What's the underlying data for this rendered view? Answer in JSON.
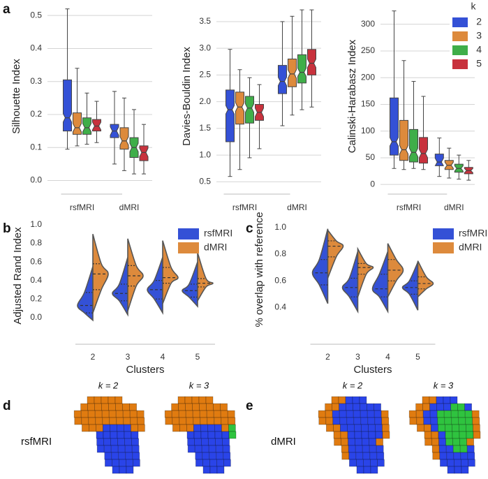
{
  "panel_labels": [
    "a",
    "b",
    "c",
    "d",
    "e"
  ],
  "chart_data": [
    {
      "type": "box",
      "y_label": "Silhouette Index",
      "categories": [
        "rsfMRI",
        "dMRI"
      ],
      "ylim": [
        -0.02,
        0.53
      ],
      "yticks": [
        {
          "value": 0,
          "label": "0.0"
        },
        0.1,
        0.2,
        0.3,
        0.4,
        0.5
      ],
      "grid": true,
      "series": [
        {
          "color": "#3451d6",
          "min": [
            0.095,
            0.05
          ],
          "q1": [
            0.15,
            0.13
          ],
          "median": [
            0.19,
            0.15
          ],
          "q3": [
            0.305,
            0.17
          ],
          "max": [
            0.52,
            0.27
          ]
        },
        {
          "color": "#dd8a3c",
          "min": [
            0.105,
            0.03
          ],
          "q1": [
            0.14,
            0.095
          ],
          "median": [
            0.16,
            0.12
          ],
          "q3": [
            0.205,
            0.16
          ],
          "max": [
            0.34,
            0.25
          ]
        },
        {
          "color": "#3fae49",
          "min": [
            0.11,
            0.02
          ],
          "q1": [
            0.14,
            0.07
          ],
          "median": [
            0.16,
            0.1
          ],
          "q3": [
            0.19,
            0.13
          ],
          "max": [
            0.265,
            0.215
          ]
        },
        {
          "color": "#c8323d",
          "min": [
            0.115,
            0.02
          ],
          "q1": [
            0.15,
            0.06
          ],
          "median": [
            0.165,
            0.085
          ],
          "q3": [
            0.185,
            0.105
          ],
          "max": [
            0.24,
            0.17
          ]
        }
      ]
    },
    {
      "type": "box",
      "y_label": "Davies-Bouldin Index",
      "categories": [
        "rsfMRI",
        "dMRI"
      ],
      "ylim": [
        0.4,
        3.8
      ],
      "yticks": [
        0.5,
        {
          "value": 1,
          "label": "1.0"
        },
        1.5,
        {
          "value": 2,
          "label": "2.0"
        },
        2.5,
        {
          "value": 3,
          "label": "3.0"
        },
        3.5
      ],
      "grid": true,
      "series": [
        {
          "color": "#3451d6",
          "min": [
            0.6,
            1.55
          ],
          "q1": [
            1.25,
            2.15
          ],
          "median": [
            1.85,
            2.38
          ],
          "q3": [
            2.22,
            2.68
          ],
          "max": [
            2.98,
            3.5
          ]
        },
        {
          "color": "#dd8a3c",
          "min": [
            0.73,
            1.75
          ],
          "q1": [
            1.58,
            2.28
          ],
          "median": [
            1.9,
            2.52
          ],
          "q3": [
            2.18,
            2.8
          ],
          "max": [
            2.6,
            3.6
          ]
        },
        {
          "color": "#3fae49",
          "min": [
            0.95,
            1.85
          ],
          "q1": [
            1.6,
            2.35
          ],
          "median": [
            1.88,
            2.55
          ],
          "q3": [
            2.1,
            2.88
          ],
          "max": [
            2.45,
            3.72
          ]
        },
        {
          "color": "#c8323d",
          "min": [
            1.12,
            1.9
          ],
          "q1": [
            1.65,
            2.5
          ],
          "median": [
            1.8,
            2.72
          ],
          "q3": [
            1.95,
            2.98
          ],
          "max": [
            2.32,
            3.72
          ]
        }
      ]
    },
    {
      "type": "box",
      "y_label": "Calinski-Harabasz Index",
      "categories": [
        "rsfMRI",
        "dMRI"
      ],
      "ylim": [
        -5,
        335
      ],
      "yticks": [
        0,
        50,
        100,
        150,
        200,
        250,
        300
      ],
      "grid": true,
      "legend_title": "k",
      "legend": "upper right",
      "series": [
        {
          "name": "2",
          "color": "#3451d6",
          "min": [
            30,
            15
          ],
          "q1": [
            55,
            35
          ],
          "median": [
            80,
            42
          ],
          "q3": [
            162,
            57
          ],
          "max": [
            325,
            87
          ]
        },
        {
          "name": "3",
          "color": "#dd8a3c",
          "min": [
            28,
            12
          ],
          "q1": [
            45,
            28
          ],
          "median": [
            65,
            36
          ],
          "q3": [
            120,
            45
          ],
          "max": [
            232,
            68
          ]
        },
        {
          "name": "4",
          "color": "#3fae49",
          "min": [
            30,
            10
          ],
          "q1": [
            42,
            23
          ],
          "median": [
            60,
            30
          ],
          "q3": [
            103,
            38
          ],
          "max": [
            193,
            55
          ]
        },
        {
          "name": "5",
          "color": "#c8323d",
          "min": [
            28,
            8
          ],
          "q1": [
            40,
            20
          ],
          "median": [
            58,
            26
          ],
          "q3": [
            88,
            32
          ],
          "max": [
            165,
            45
          ]
        }
      ]
    },
    {
      "type": "violin",
      "y_label": "Adjusted Rand Index",
      "x_label": "Clusters",
      "categories": [
        "2",
        "3",
        "4",
        "5"
      ],
      "ylim": [
        -0.1,
        1.0
      ],
      "yticks": [
        {
          "value": 0,
          "label": "0.0"
        },
        0.2,
        0.4,
        0.6,
        0.8,
        {
          "value": 1,
          "label": "1.0"
        }
      ],
      "legend": "upper right",
      "series": [
        {
          "name": "rsfMRI",
          "color": "#3451d6",
          "min": [
            -0.03,
            0.03,
            0.05,
            0.12
          ],
          "q1": [
            0.05,
            0.18,
            0.2,
            0.22
          ],
          "median": [
            0.13,
            0.26,
            0.3,
            0.29
          ],
          "q3": [
            0.27,
            0.36,
            0.4,
            0.36
          ],
          "max": [
            0.55,
            0.65,
            0.65,
            0.6
          ]
        },
        {
          "name": "dMRI",
          "color": "#dd8a3c",
          "min": [
            0.05,
            0.07,
            0.15,
            0.18
          ],
          "q1": [
            0.3,
            0.34,
            0.37,
            0.33
          ],
          "median": [
            0.47,
            0.45,
            0.43,
            0.37
          ],
          "q3": [
            0.58,
            0.56,
            0.54,
            0.42
          ],
          "max": [
            0.9,
            0.85,
            0.83,
            0.7
          ]
        }
      ]
    },
    {
      "type": "violin",
      "y_label": "% overlap with reference",
      "x_label": "Clusters",
      "categories": [
        "2",
        "3",
        "4",
        "5"
      ],
      "ylim": [
        0.35,
        1.02
      ],
      "yticks": [
        0.4,
        0.6,
        0.8,
        {
          "value": 1,
          "label": "1.0"
        }
      ],
      "legend": "upper right",
      "series": [
        {
          "name": "rsfMRI",
          "color": "#3451d6",
          "min": [
            0.43,
            0.37,
            0.37,
            0.38
          ],
          "q1": [
            0.57,
            0.48,
            0.48,
            0.5
          ],
          "median": [
            0.66,
            0.55,
            0.54,
            0.55
          ],
          "q3": [
            0.76,
            0.62,
            0.65,
            0.6
          ],
          "max": [
            0.99,
            0.82,
            0.82,
            0.74
          ]
        },
        {
          "name": "dMRI",
          "color": "#dd8a3c",
          "min": [
            0.62,
            0.48,
            0.48,
            0.48
          ],
          "q1": [
            0.78,
            0.65,
            0.6,
            0.54
          ],
          "median": [
            0.86,
            0.7,
            0.68,
            0.58
          ],
          "q3": [
            0.9,
            0.73,
            0.76,
            0.63
          ],
          "max": [
            0.98,
            0.84,
            0.88,
            0.75
          ]
        }
      ]
    }
  ],
  "brain_panels": [
    {
      "row_label": "rsfMRI",
      "column_labels": [
        "k = 2",
        "k = 3"
      ]
    },
    {
      "row_label": "dMRI",
      "column_labels": [
        "k = 2",
        "k = 3"
      ]
    }
  ]
}
